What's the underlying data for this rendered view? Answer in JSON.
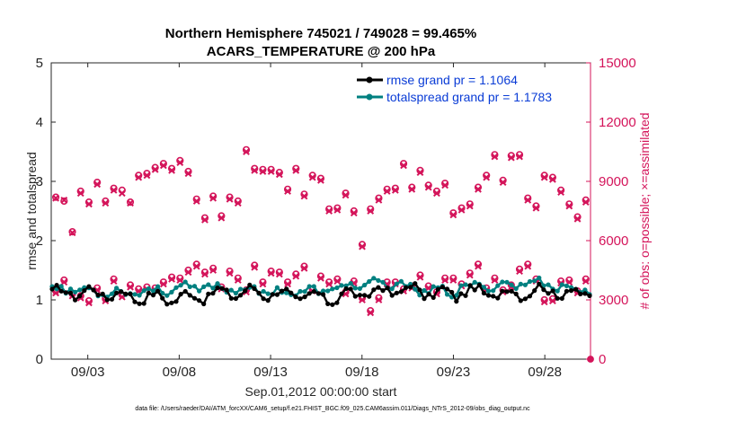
{
  "chart_data": {
    "type": "line",
    "title": "Northern Hemisphere 745021 / 749028 = 99.465%",
    "subtitle": "ACARS_TEMPERATURE @ 200 hPa",
    "xlabel": "Sep.01,2012 00:00:00 start",
    "ylabel_left": "rmse and totalspread",
    "ylabel_right": "# of obs: o=possible; ×=assimilated",
    "ylim_left": [
      0,
      5
    ],
    "ylim_right": [
      0,
      15000
    ],
    "xlim_days": [
      1,
      30.5
    ],
    "yticks_left": [
      "0",
      "1",
      "2",
      "3",
      "4",
      "5"
    ],
    "yticks_right": [
      "0",
      "3000",
      "6000",
      "9000",
      "12000",
      "15000"
    ],
    "xticks": [
      {
        "day": 3,
        "label": "09/03"
      },
      {
        "day": 8,
        "label": "09/08"
      },
      {
        "day": 13,
        "label": "09/13"
      },
      {
        "day": 18,
        "label": "09/18"
      },
      {
        "day": 23,
        "label": "09/23"
      },
      {
        "day": 28,
        "label": "09/28"
      }
    ],
    "legend": [
      {
        "label": "rmse grand pr = 1.1064",
        "color": "#000000"
      },
      {
        "label": "totalspread grand pr = 1.1783",
        "color": "#008080"
      }
    ],
    "colors": {
      "rmse": "#000000",
      "spread": "#008080",
      "obs": "#d4145a",
      "legend_text": "#0a3cd6"
    },
    "obs_possible_high": [
      8200,
      8000,
      6450,
      8500,
      7950,
      8950,
      8000,
      8650,
      8550,
      7950,
      9300,
      9400,
      9700,
      9900,
      9650,
      10050,
      9500,
      8100,
      7150,
      8250,
      7250,
      8200,
      8000,
      10600,
      9650,
      9600,
      9600,
      9450,
      8600,
      9650,
      8350,
      9300,
      9150,
      7600,
      7650,
      8400,
      7500,
      5800,
      7600,
      8150,
      8600,
      8650,
      9900,
      8700,
      9550,
      8800,
      8500,
      8900,
      7400,
      7650,
      7850,
      8700,
      9300,
      10350,
      9050,
      10300,
      10350,
      8150,
      7750,
      9300,
      9200,
      8550,
      7850,
      7200,
      8050
    ],
    "obs_possible_low": [
      3450,
      4000,
      3300,
      3200,
      2950,
      3600,
      3050,
      4050,
      3250,
      3750,
      3550,
      3650,
      3600,
      3900,
      4150,
      4100,
      4500,
      4800,
      4400,
      4600,
      3650,
      4450,
      4100,
      3500,
      4750,
      3900,
      4450,
      4400,
      3900,
      4300,
      4700,
      3550,
      4200,
      3900,
      4050,
      3400,
      3950,
      3100,
      2450,
      3100,
      3900,
      3900,
      3550,
      3700,
      4250,
      3700,
      3400,
      4100,
      4100,
      3800,
      4350,
      4800,
      3600,
      4100,
      3500,
      3750,
      4550,
      4800,
      4050,
      3000,
      3050,
      3950,
      4000,
      3450,
      4050
    ],
    "obs_assimilated_high": [
      8150,
      8050,
      6400,
      8400,
      7850,
      8850,
      7900,
      8550,
      8400,
      7900,
      9200,
      9300,
      9600,
      9800,
      9550,
      9950,
      9400,
      8000,
      7050,
      8150,
      7150,
      8100,
      7900,
      10500,
      9550,
      9500,
      9500,
      9350,
      8500,
      9550,
      8250,
      9200,
      9050,
      7500,
      7550,
      8300,
      7400,
      5700,
      7500,
      8050,
      8500,
      8550,
      9800,
      8600,
      9450,
      8700,
      8400,
      8800,
      7300,
      7550,
      7750,
      8600,
      9200,
      10250,
      8950,
      10200,
      10250,
      8050,
      7650,
      9200,
      9100,
      8450,
      7750,
      7100,
      7950
    ],
    "obs_assimilated_low": [
      3350,
      3900,
      3200,
      3100,
      2850,
      3500,
      2950,
      3950,
      3150,
      3650,
      3450,
      3550,
      3500,
      3800,
      4050,
      4000,
      4400,
      4700,
      4300,
      4500,
      3550,
      4350,
      4000,
      3400,
      4650,
      3800,
      4350,
      4300,
      3800,
      4200,
      4600,
      3450,
      4100,
      3800,
      3950,
      3300,
      3850,
      3000,
      2350,
      3000,
      3800,
      3800,
      3450,
      3600,
      4150,
      3600,
      3300,
      4000,
      4000,
      3700,
      4250,
      4700,
      3500,
      4000,
      3400,
      3650,
      4450,
      4700,
      3950,
      2900,
      2950,
      3850,
      3900,
      3350,
      3950
    ],
    "obs_zero_day": 30.5
  },
  "footer": "data file: /Users/raeder/DAI/ATM_forcXX/CAM6_setup/f.e21.FHIST_BGC.f09_025.CAM6assim.011/Diags_NTrS_2012-09/obs_diag_output.nc"
}
